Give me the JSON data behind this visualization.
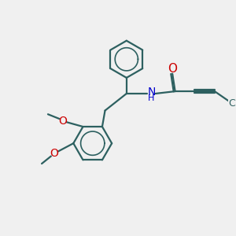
{
  "bg_color": "#f0f0f0",
  "bond_color": "#2d6060",
  "O_color": "#cc0000",
  "N_color": "#0000cc",
  "line_width": 1.6,
  "figsize": [
    3.0,
    3.0
  ],
  "dpi": 100,
  "xlim": [
    0,
    10
  ],
  "ylim": [
    0,
    10
  ]
}
